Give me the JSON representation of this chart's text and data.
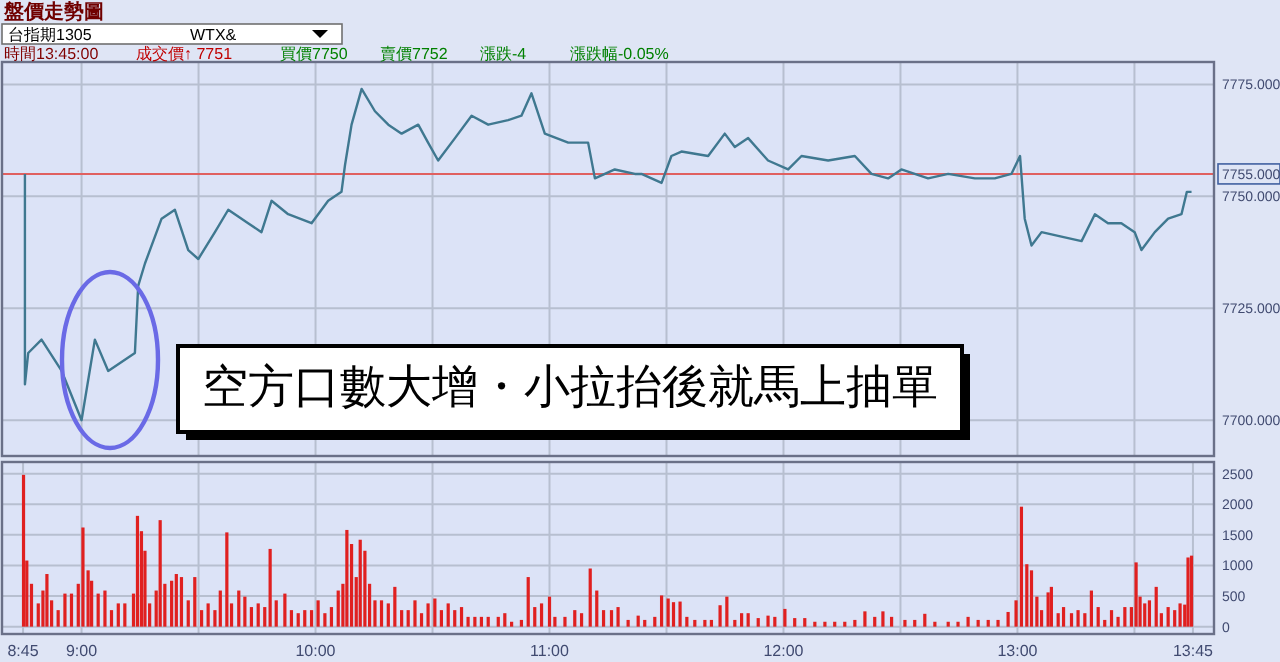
{
  "chart_data": [
    {
      "type": "line",
      "title": "盤價走勢圖",
      "annotations": [
        "台指期1305",
        "WTX&",
        "時間13:45:00",
        "成交價↑ 7751",
        "買價7750",
        "賣價7752",
        "漲跌-4",
        "漲跌幅-0.05%",
        "空方口數大增・小拉抬後就馬上抽單"
      ],
      "x": [
        8.758,
        8.758,
        8.772,
        8.829,
        8.915,
        9.0,
        9.057,
        9.114,
        9.228,
        9.242,
        9.271,
        9.342,
        9.399,
        9.456,
        9.499,
        9.57,
        9.627,
        9.712,
        9.769,
        9.812,
        9.883,
        9.983,
        10.054,
        10.111,
        10.126,
        10.154,
        10.197,
        10.254,
        10.311,
        10.368,
        10.439,
        10.481,
        10.524,
        10.596,
        10.667,
        10.738,
        10.823,
        10.88,
        10.923,
        10.98,
        11.08,
        11.165,
        11.194,
        11.279,
        11.365,
        11.393,
        11.479,
        11.521,
        11.564,
        11.678,
        11.749,
        11.792,
        11.849,
        11.934,
        12.02,
        12.077,
        12.191,
        12.305,
        12.376,
        12.447,
        12.504,
        12.618,
        12.704,
        12.818,
        12.903,
        12.974,
        13.011,
        13.031,
        13.06,
        13.103,
        13.188,
        13.274,
        13.331,
        13.387,
        13.444,
        13.501,
        13.53,
        13.587,
        13.644,
        13.701,
        13.724,
        13.744
      ],
      "series": [
        {
          "color": "#3f7890",
          "values": [
            7755,
            7708,
            7715,
            7718,
            7711,
            7700,
            7718,
            7711,
            7715,
            7730,
            7735,
            7745,
            7747,
            7738,
            7736,
            7742,
            7747,
            7744,
            7742,
            7749,
            7746,
            7744,
            7749,
            7751,
            7757,
            7766,
            7774,
            7769,
            7766,
            7764,
            7766,
            7762,
            7758,
            7763,
            7768,
            7766,
            7767,
            7768,
            7773,
            7764,
            7762,
            7762,
            7754,
            7756,
            7755,
            7755,
            7753,
            7759,
            7760,
            7759,
            7764,
            7761,
            7763,
            7758,
            7756,
            7759,
            7758,
            7759,
            7755,
            7754,
            7756,
            7754,
            7755,
            7754,
            7754,
            7755,
            7759,
            7745,
            7739,
            7742,
            7741,
            7740,
            7746,
            7744,
            7744,
            7742,
            7738,
            7742,
            7745,
            7746,
            7751,
            7751
          ]
        }
      ],
      "xlim": [
        8.66,
        13.84
      ],
      "ylim": [
        7692,
        7780
      ],
      "xticks": [
        {
          "value": 9,
          "label": null
        },
        {
          "value": 9.5,
          "label": null
        },
        {
          "value": 10,
          "label": null
        },
        {
          "value": 10.5,
          "label": null
        },
        {
          "value": 11,
          "label": null
        },
        {
          "value": 11.5,
          "label": null
        },
        {
          "value": 12,
          "label": null
        },
        {
          "value": 12.5,
          "label": null
        },
        {
          "value": 13,
          "label": null
        },
        {
          "value": 13.5,
          "label": null
        }
      ],
      "yticks": [
        {
          "value": 7700,
          "label": "7700.000"
        },
        {
          "value": 7725,
          "label": "7725.000"
        },
        {
          "value": 7750,
          "label": "7750.000"
        },
        {
          "value": 7775,
          "label": "7775.000"
        }
      ],
      "ref_lines": [
        {
          "axis": "y",
          "value": 7755,
          "label": "7755.000",
          "color": "#e06060"
        }
      ],
      "grid": true,
      "tick_labels": "y"
    },
    {
      "type": "bar",
      "x": [
        8.752,
        8.766,
        8.786,
        8.815,
        8.835,
        8.852,
        8.872,
        8.9,
        8.929,
        8.957,
        8.986,
        9.006,
        9.028,
        9.043,
        9.071,
        9.1,
        9.128,
        9.157,
        9.185,
        9.222,
        9.239,
        9.256,
        9.271,
        9.291,
        9.319,
        9.336,
        9.356,
        9.385,
        9.405,
        9.427,
        9.456,
        9.484,
        9.513,
        9.541,
        9.57,
        9.593,
        9.621,
        9.641,
        9.672,
        9.698,
        9.726,
        9.755,
        9.783,
        9.806,
        9.832,
        9.869,
        9.897,
        9.926,
        9.954,
        9.983,
        10.011,
        10.04,
        10.068,
        10.097,
        10.117,
        10.134,
        10.154,
        10.174,
        10.191,
        10.211,
        10.231,
        10.254,
        10.282,
        10.311,
        10.339,
        10.368,
        10.396,
        10.425,
        10.453,
        10.481,
        10.51,
        10.538,
        10.567,
        10.595,
        10.624,
        10.652,
        10.681,
        10.709,
        10.738,
        10.781,
        10.809,
        10.838,
        10.88,
        10.909,
        10.937,
        10.966,
        11.0,
        11.023,
        11.066,
        11.108,
        11.137,
        11.174,
        11.202,
        11.231,
        11.265,
        11.293,
        11.336,
        11.379,
        11.407,
        11.45,
        11.479,
        11.507,
        11.53,
        11.558,
        11.587,
        11.621,
        11.664,
        11.692,
        11.729,
        11.758,
        11.792,
        11.821,
        11.849,
        11.892,
        11.934,
        11.963,
        12.006,
        12.048,
        12.091,
        12.134,
        12.177,
        12.219,
        12.262,
        12.305,
        12.348,
        12.39,
        12.425,
        12.462,
        12.519,
        12.561,
        12.604,
        12.647,
        12.704,
        12.746,
        12.789,
        12.832,
        12.875,
        12.917,
        12.96,
        12.994,
        13.017,
        13.04,
        13.06,
        13.083,
        13.103,
        13.131,
        13.145,
        13.174,
        13.197,
        13.231,
        13.259,
        13.288,
        13.316,
        13.345,
        13.373,
        13.402,
        13.43,
        13.459,
        13.487,
        13.507,
        13.524,
        13.544,
        13.564,
        13.593,
        13.615,
        13.644,
        13.672,
        13.695,
        13.715,
        13.729,
        13.744
      ],
      "series": [
        {
          "color": "#e02020",
          "values": [
            2480,
            1080,
            700,
            380,
            590,
            860,
            430,
            270,
            540,
            540,
            700,
            1620,
            920,
            750,
            540,
            590,
            270,
            380,
            380,
            540,
            1810,
            1560,
            1240,
            380,
            590,
            1740,
            700,
            750,
            860,
            810,
            430,
            810,
            270,
            380,
            270,
            590,
            1540,
            380,
            590,
            490,
            320,
            380,
            320,
            1270,
            430,
            540,
            270,
            220,
            270,
            270,
            430,
            220,
            320,
            590,
            700,
            1580,
            1350,
            810,
            1420,
            1240,
            700,
            430,
            430,
            380,
            650,
            270,
            270,
            430,
            220,
            380,
            460,
            270,
            380,
            270,
            320,
            160,
            160,
            160,
            160,
            160,
            220,
            80,
            110,
            810,
            320,
            380,
            490,
            160,
            160,
            270,
            220,
            950,
            590,
            270,
            270,
            320,
            110,
            180,
            110,
            160,
            510,
            460,
            400,
            410,
            160,
            110,
            110,
            110,
            350,
            490,
            110,
            220,
            220,
            140,
            180,
            160,
            290,
            140,
            140,
            80,
            80,
            80,
            80,
            110,
            250,
            160,
            250,
            160,
            110,
            110,
            210,
            80,
            80,
            80,
            160,
            110,
            110,
            110,
            240,
            430,
            1960,
            1020,
            920,
            490,
            270,
            560,
            650,
            220,
            320,
            220,
            270,
            220,
            590,
            320,
            110,
            270,
            160,
            320,
            320,
            1050,
            490,
            380,
            430,
            650,
            220,
            320,
            270,
            380,
            360,
            1130,
            1160
          ]
        }
      ],
      "xlim": [
        8.66,
        13.84
      ],
      "ylim": [
        -120,
        2690
      ],
      "xticks": [
        {
          "value": 8.75,
          "label": "8:45"
        },
        {
          "value": 9,
          "label": "9:00"
        },
        {
          "value": 9.5,
          "label": null
        },
        {
          "value": 10,
          "label": "10:00"
        },
        {
          "value": 10.5,
          "label": null
        },
        {
          "value": 11,
          "label": "11:00"
        },
        {
          "value": 11.5,
          "label": null
        },
        {
          "value": 12,
          "label": "12:00"
        },
        {
          "value": 12.5,
          "label": null
        },
        {
          "value": 13,
          "label": "13:00"
        },
        {
          "value": 13.5,
          "label": null
        },
        {
          "value": 13.75,
          "label": "13:45"
        }
      ],
      "yticks": [
        0,
        500,
        1000,
        1500,
        2000,
        2500
      ],
      "grid": true
    }
  ]
}
